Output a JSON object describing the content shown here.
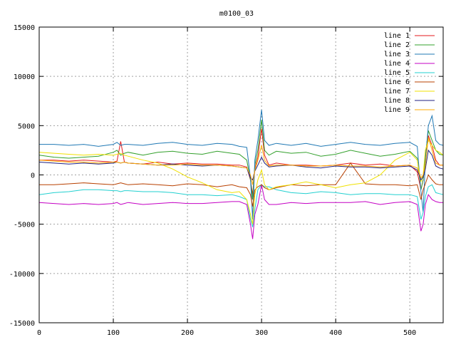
{
  "chart_data": {
    "type": "line",
    "title": "m0100_03",
    "xlabel": "",
    "ylabel": "",
    "xlim": [
      0,
      545
    ],
    "ylim": [
      -15000,
      15000
    ],
    "xticks": [
      0,
      100,
      200,
      300,
      400,
      500
    ],
    "yticks": [
      -15000,
      -10000,
      -5000,
      0,
      5000,
      10000,
      15000
    ],
    "grid": true,
    "legend_position": "top-right",
    "x": [
      0,
      20,
      40,
      60,
      80,
      100,
      105,
      110,
      115,
      120,
      140,
      160,
      180,
      200,
      220,
      240,
      260,
      270,
      280,
      285,
      288,
      291,
      295,
      300,
      304,
      310,
      320,
      340,
      360,
      380,
      400,
      420,
      440,
      460,
      480,
      500,
      510,
      515,
      518,
      521,
      525,
      530,
      535,
      540,
      545
    ],
    "series": [
      {
        "name": "line 1",
        "color": "#e41a1c",
        "values": [
          1500,
          1500,
          1400,
          1500,
          1400,
          1300,
          1400,
          3400,
          1300,
          1200,
          1100,
          1300,
          1100,
          1200,
          1100,
          1100,
          1000,
          1000,
          800,
          -500,
          -2000,
          600,
          1800,
          4700,
          2000,
          1000,
          1200,
          1000,
          1000,
          900,
          1000,
          1200,
          1000,
          1100,
          900,
          1000,
          300,
          -1500,
          -500,
          1800,
          4000,
          3000,
          1500,
          1000,
          1000
        ]
      },
      {
        "name": "line 2",
        "color": "#33a02c",
        "values": [
          2000,
          1800,
          1700,
          1800,
          1900,
          2300,
          2500,
          2000,
          2200,
          2300,
          2000,
          2300,
          2400,
          2200,
          2100,
          2400,
          2200,
          2100,
          1500,
          -500,
          -2500,
          1000,
          2500,
          5600,
          2500,
          2000,
          2400,
          2200,
          2300,
          1900,
          2100,
          2500,
          2200,
          1900,
          2100,
          2400,
          1700,
          -1500,
          -500,
          2000,
          4500,
          3500,
          2500,
          2100,
          2000
        ]
      },
      {
        "name": "line 3",
        "color": "#1f78b4",
        "values": [
          3100,
          3100,
          3000,
          3100,
          2900,
          3100,
          3300,
          3000,
          3100,
          3100,
          3000,
          3200,
          3300,
          3100,
          3000,
          3200,
          3100,
          2900,
          2800,
          -300,
          -4500,
          1500,
          3500,
          6600,
          3500,
          3000,
          3200,
          3000,
          3200,
          2900,
          3100,
          3300,
          3100,
          3000,
          3200,
          3300,
          2900,
          -1700,
          -3800,
          1500,
          5000,
          6000,
          3500,
          3100,
          3000
        ]
      },
      {
        "name": "line 4",
        "color": "#c400c4",
        "values": [
          -2800,
          -2900,
          -3000,
          -2900,
          -3000,
          -2900,
          -2800,
          -3000,
          -2900,
          -2800,
          -3000,
          -2900,
          -2800,
          -2900,
          -2900,
          -2800,
          -2700,
          -2700,
          -3000,
          -5000,
          -6500,
          -4000,
          -3000,
          -1000,
          -2500,
          -3000,
          -3000,
          -2800,
          -2900,
          -2800,
          -2800,
          -2800,
          -2700,
          -3000,
          -2800,
          -2700,
          -3000,
          -5700,
          -5000,
          -3000,
          -2000,
          -2500,
          -2700,
          -2800,
          -2800
        ]
      },
      {
        "name": "line 5",
        "color": "#22d0d0",
        "values": [
          -2000,
          -1800,
          -1700,
          -1500,
          -1500,
          -1600,
          -1600,
          -1700,
          -1600,
          -1600,
          -1700,
          -1700,
          -1800,
          -2000,
          -2000,
          -2100,
          -2000,
          -2200,
          -2500,
          -4500,
          -5300,
          -3500,
          -1500,
          -1000,
          -1200,
          -1200,
          -1500,
          -1800,
          -1900,
          -1700,
          -1800,
          -2000,
          -1900,
          -1900,
          -2000,
          -2000,
          -2200,
          -4500,
          -3800,
          -2200,
          -1200,
          -1000,
          -1800,
          -1900,
          -2000
        ]
      },
      {
        "name": "line 6",
        "color": "#b84000",
        "values": [
          -1000,
          -1000,
          -900,
          -800,
          -900,
          -1000,
          -900,
          -800,
          -900,
          -1000,
          -900,
          -1000,
          -1100,
          -900,
          -1000,
          -1200,
          -1000,
          -1200,
          -1300,
          -2000,
          -3200,
          -1500,
          -1200,
          -1000,
          -1300,
          -1500,
          -1300,
          -1000,
          -1100,
          -1000,
          -1000,
          1200,
          -900,
          -1000,
          -1000,
          -1100,
          -1000,
          -2500,
          -1500,
          -900,
          0,
          -500,
          -900,
          -1000,
          -1000
        ]
      },
      {
        "name": "line 7",
        "color": "#f0e000",
        "values": [
          2300,
          2200,
          2100,
          2000,
          2100,
          2000,
          2100,
          2200,
          2000,
          1900,
          1500,
          1200,
          600,
          -200,
          -800,
          -1500,
          -1800,
          -1700,
          -2500,
          -4000,
          -5000,
          -2000,
          -500,
          500,
          -1000,
          -1500,
          -1200,
          -1000,
          -700,
          -1000,
          -1300,
          -1000,
          -800,
          0,
          1500,
          2300,
          1500,
          -700,
          0,
          2500,
          3500,
          3000,
          2500,
          2300,
          2000
        ]
      },
      {
        "name": "line 8",
        "color": "#202080",
        "values": [
          1300,
          1200,
          1100,
          1200,
          1100,
          1200,
          1300,
          1200,
          1300,
          1200,
          1100,
          1000,
          1100,
          1000,
          900,
          1000,
          900,
          800,
          700,
          -300,
          -500,
          400,
          1000,
          1800,
          1200,
          800,
          900,
          1000,
          800,
          700,
          900,
          800,
          800,
          700,
          800,
          900,
          500,
          -500,
          -200,
          600,
          2500,
          2000,
          900,
          700,
          600
        ]
      },
      {
        "name": "line 9",
        "color": "#ffaa00",
        "values": [
          1500,
          1400,
          1300,
          1300,
          1200,
          1300,
          1300,
          1200,
          1300,
          1200,
          1100,
          1000,
          1000,
          1100,
          1000,
          1000,
          900,
          800,
          700,
          0,
          -1000,
          500,
          1500,
          3000,
          1500,
          900,
          1000,
          1000,
          900,
          900,
          1000,
          900,
          900,
          800,
          900,
          1000,
          700,
          -300,
          0,
          1000,
          3800,
          2500,
          1200,
          1000,
          1000
        ]
      }
    ]
  }
}
